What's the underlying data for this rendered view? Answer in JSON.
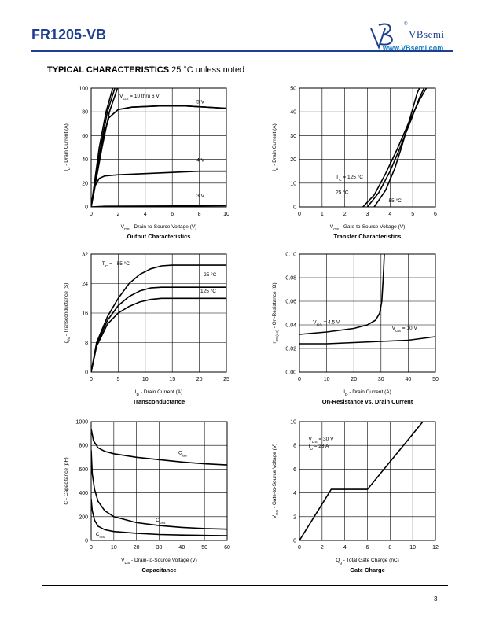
{
  "header": {
    "part_number": "FR1205-VB",
    "brand": "VBsemi",
    "registered": "®",
    "url": "www.VBsemi.com"
  },
  "section": {
    "title": "TYPICAL CHARACTERISTICS",
    "subtitle": "25 °C unless noted"
  },
  "footer": {
    "page_number": "3"
  },
  "chart_data": [
    {
      "id": "output",
      "type": "line",
      "title": "Output Characteristics",
      "xlabel": "V_DS - Drain-to-Source Voltage (V)",
      "ylabel": "I_D - Drain Current (A)",
      "xlim": [
        0,
        10
      ],
      "ylim": [
        0,
        100
      ],
      "xticks": [
        "0",
        "2",
        "4",
        "6",
        "8",
        "10"
      ],
      "yticks": [
        "0",
        "20",
        "40",
        "60",
        "80",
        "100"
      ],
      "grid": true,
      "series": [
        {
          "name": "V_GS = 10 thru 6 V",
          "points": [
            [
              0,
              0
            ],
            [
              0.4,
              30
            ],
            [
              0.8,
              55
            ],
            [
              1.3,
              75
            ],
            [
              2,
              82
            ],
            [
              3,
              84
            ],
            [
              5,
              85
            ],
            [
              7,
              85
            ],
            [
              10,
              83
            ]
          ]
        },
        {
          "name": "",
          "points": [
            [
              0,
              0
            ],
            [
              0.6,
              50
            ],
            [
              1.1,
              80
            ],
            [
              1.6,
              100
            ]
          ]
        },
        {
          "name": "",
          "points": [
            [
              0,
              0
            ],
            [
              0.7,
              50
            ],
            [
              1.2,
              80
            ],
            [
              1.75,
              100
            ]
          ]
        },
        {
          "name": "",
          "points": [
            [
              0,
              0
            ],
            [
              0.8,
              50
            ],
            [
              1.35,
              80
            ],
            [
              1.95,
              100
            ]
          ]
        },
        {
          "name": "5 V",
          "points": [
            [
              0,
              0
            ],
            [
              0.4,
              30
            ],
            [
              0.8,
              55
            ],
            [
              1.3,
              75
            ],
            [
              2,
              82
            ],
            [
              3,
              84
            ],
            [
              5,
              85
            ],
            [
              7,
              85
            ],
            [
              10,
              83
            ]
          ]
        },
        {
          "name": "4 V",
          "points": [
            [
              0,
              0
            ],
            [
              0.3,
              18
            ],
            [
              0.6,
              24
            ],
            [
              1,
              26
            ],
            [
              2,
              27
            ],
            [
              4,
              28
            ],
            [
              6,
              29
            ],
            [
              8,
              30
            ],
            [
              10,
              30
            ]
          ]
        },
        {
          "name": "3 V",
          "points": [
            [
              0,
              0
            ],
            [
              1,
              0.5
            ],
            [
              10,
              1
            ]
          ]
        }
      ],
      "annotations": [
        {
          "text": "V_GS = 10 thru 6 V",
          "x": 2.1,
          "y": 92
        },
        {
          "text": "5 V",
          "x": 7.8,
          "y": 87
        },
        {
          "text": "4 V",
          "x": 7.8,
          "y": 38
        },
        {
          "text": "3 V",
          "x": 7.8,
          "y": 8
        }
      ]
    },
    {
      "id": "transfer",
      "type": "line",
      "title": "Transfer Characteristics",
      "xlabel": "V_GS - Gate-to-Source Voltage (V)",
      "ylabel": "I_D - Drain Current (A)",
      "xlim": [
        0,
        6
      ],
      "ylim": [
        0,
        50
      ],
      "xticks": [
        "0",
        "1",
        "2",
        "3",
        "4",
        "5",
        "6"
      ],
      "yticks": [
        "0",
        "10",
        "20",
        "30",
        "40",
        "50"
      ],
      "grid": true,
      "series": [
        {
          "name": "T_C = 125 °C",
          "points": [
            [
              2.8,
              0
            ],
            [
              3.3,
              5
            ],
            [
              3.8,
              14
            ],
            [
              4.3,
              24
            ],
            [
              4.8,
              35
            ],
            [
              5.3,
              45
            ],
            [
              5.6,
              50
            ]
          ]
        },
        {
          "name": "25 °C",
          "points": [
            [
              3.0,
              0
            ],
            [
              3.5,
              6
            ],
            [
              4.0,
              15
            ],
            [
              4.4,
              24
            ],
            [
              4.9,
              36
            ],
            [
              5.3,
              46
            ],
            [
              5.5,
              50
            ]
          ]
        },
        {
          "name": "- 55 °C",
          "points": [
            [
              3.3,
              0
            ],
            [
              3.8,
              7
            ],
            [
              4.2,
              16
            ],
            [
              4.5,
              25
            ],
            [
              4.9,
              38
            ],
            [
              5.2,
              48
            ],
            [
              5.3,
              50
            ]
          ]
        }
      ],
      "annotations": [
        {
          "text": "T_C = 125 °C",
          "x": 1.6,
          "y": 12
        },
        {
          "text": "25 °C",
          "x": 1.6,
          "y": 5.5
        },
        {
          "text": "- 55 °C",
          "x": 3.8,
          "y": 2
        }
      ]
    },
    {
      "id": "transconductance",
      "type": "line",
      "title": "Transconductance",
      "xlabel": "I_D - Drain Current (A)",
      "ylabel": "g_fs - Transconductance (S)",
      "xlim": [
        0,
        25
      ],
      "ylim": [
        0,
        32
      ],
      "xticks": [
        "0",
        "5",
        "10",
        "15",
        "20",
        "25"
      ],
      "yticks": [
        "0",
        "8",
        "16",
        "24",
        "32"
      ],
      "grid": true,
      "series": [
        {
          "name": "T_C = - 55 °C",
          "points": [
            [
              0,
              0
            ],
            [
              1,
              8
            ],
            [
              3,
              15
            ],
            [
              5,
              20
            ],
            [
              7,
              24
            ],
            [
              9,
              26.5
            ],
            [
              11,
              28
            ],
            [
              13,
              28.8
            ],
            [
              15,
              29
            ],
            [
              25,
              29
            ]
          ]
        },
        {
          "name": "25 °C",
          "points": [
            [
              0,
              0
            ],
            [
              1,
              7.5
            ],
            [
              3,
              14
            ],
            [
              5,
              18
            ],
            [
              7,
              20.5
            ],
            [
              9,
              22
            ],
            [
              11,
              22.8
            ],
            [
              13,
              23
            ],
            [
              25,
              23
            ]
          ]
        },
        {
          "name": "125 °C",
          "points": [
            [
              0,
              0
            ],
            [
              1,
              7
            ],
            [
              3,
              13
            ],
            [
              5,
              16
            ],
            [
              7,
              17.8
            ],
            [
              9,
              19
            ],
            [
              11,
              19.7
            ],
            [
              13,
              20
            ],
            [
              25,
              20
            ]
          ]
        }
      ],
      "annotations": [
        {
          "text": "T_C = - 55 °C",
          "x": 2,
          "y": 29
        },
        {
          "text": "25 °C",
          "x": 20.8,
          "y": 26
        },
        {
          "text": "125 °C",
          "x": 20.2,
          "y": 21.5
        }
      ]
    },
    {
      "id": "onres",
      "type": "line",
      "title": "On-Resistance vs. Drain Current",
      "xlabel": "I_D - Drain Current (A)",
      "ylabel": "r_DS(on) - On-Resistance (Ω)",
      "xlim": [
        0,
        50
      ],
      "ylim": [
        0,
        0.1
      ],
      "xticks": [
        "0",
        "10",
        "20",
        "30",
        "40",
        "50"
      ],
      "yticks": [
        "0.00",
        "0.02",
        "0.04",
        "0.06",
        "0.08",
        "0.10"
      ],
      "grid": true,
      "series": [
        {
          "name": "V_GS = 4.5 V",
          "points": [
            [
              0,
              0.032
            ],
            [
              10,
              0.034
            ],
            [
              20,
              0.037
            ],
            [
              25,
              0.04
            ],
            [
              28,
              0.044
            ],
            [
              29.5,
              0.05
            ],
            [
              30.3,
              0.06
            ],
            [
              30.8,
              0.08
            ],
            [
              31.2,
              0.1
            ]
          ]
        },
        {
          "name": "V_GS = 10 V",
          "points": [
            [
              0,
              0.024
            ],
            [
              10,
              0.024
            ],
            [
              20,
              0.025
            ],
            [
              30,
              0.026
            ],
            [
              40,
              0.027
            ],
            [
              50,
              0.03
            ]
          ]
        }
      ],
      "annotations": [
        {
          "text": "V_GS = 4.5 V",
          "x": 5,
          "y": 0.041
        },
        {
          "text": "V_GS = 10 V",
          "x": 34,
          "y": 0.036
        }
      ]
    },
    {
      "id": "capacitance",
      "type": "line",
      "title": "Capacitance",
      "xlabel": "V_DS - Drain-to-Source Voltage (V)",
      "ylabel": "C - Capacitance (pF)",
      "xlim": [
        0,
        60
      ],
      "ylim": [
        0,
        1000
      ],
      "xticks": [
        "0",
        "10",
        "20",
        "30",
        "40",
        "50",
        "60"
      ],
      "yticks": [
        "0",
        "200",
        "400",
        "600",
        "800",
        "1000"
      ],
      "grid": true,
      "series": [
        {
          "name": "C_iss",
          "points": [
            [
              0,
              940
            ],
            [
              1,
              840
            ],
            [
              3,
              780
            ],
            [
              6,
              750
            ],
            [
              10,
              730
            ],
            [
              20,
              700
            ],
            [
              30,
              680
            ],
            [
              40,
              660
            ],
            [
              50,
              645
            ],
            [
              60,
              635
            ]
          ]
        },
        {
          "name": "C_oss",
          "points": [
            [
              0,
              760
            ],
            [
              0.5,
              560
            ],
            [
              1.5,
              430
            ],
            [
              3,
              330
            ],
            [
              6,
              250
            ],
            [
              10,
              200
            ],
            [
              20,
              150
            ],
            [
              30,
              125
            ],
            [
              40,
              110
            ],
            [
              50,
              100
            ],
            [
              60,
              95
            ]
          ]
        },
        {
          "name": "C_rss",
          "points": [
            [
              0,
              350
            ],
            [
              0.5,
              250
            ],
            [
              1.5,
              170
            ],
            [
              3,
              120
            ],
            [
              6,
              90
            ],
            [
              10,
              75
            ],
            [
              20,
              60
            ],
            [
              30,
              50
            ],
            [
              40,
              45
            ],
            [
              50,
              42
            ],
            [
              60,
              40
            ]
          ]
        }
      ],
      "annotations": [
        {
          "text": "C_iss",
          "x": 38.5,
          "y": 725
        },
        {
          "text": "C_oss",
          "x": 28.5,
          "y": 160
        },
        {
          "text": "C_rss",
          "x": 2,
          "y": 40
        }
      ]
    },
    {
      "id": "gatecharge",
      "type": "line",
      "title": "Gate Charge",
      "xlabel": "Q_g - Total Gate Charge (nC)",
      "ylabel": "V_GS - Gate-to-Source Voltage (V)",
      "xlim": [
        0,
        12
      ],
      "ylim": [
        0,
        10
      ],
      "xticks": [
        "0",
        "2",
        "4",
        "6",
        "8",
        "10",
        "12"
      ],
      "yticks": [
        "0",
        "2",
        "4",
        "6",
        "8",
        "10"
      ],
      "grid": true,
      "series": [
        {
          "name": "",
          "points": [
            [
              0,
              0
            ],
            [
              2.8,
              4.3
            ],
            [
              6,
              4.3
            ],
            [
              10.9,
              10
            ]
          ]
        }
      ],
      "annotations": [
        {
          "text": "V_DS = 30 V",
          "x": 0.8,
          "y": 8.4
        },
        {
          "text": "I_D = 23 A",
          "x": 0.8,
          "y": 7.8
        }
      ]
    }
  ]
}
